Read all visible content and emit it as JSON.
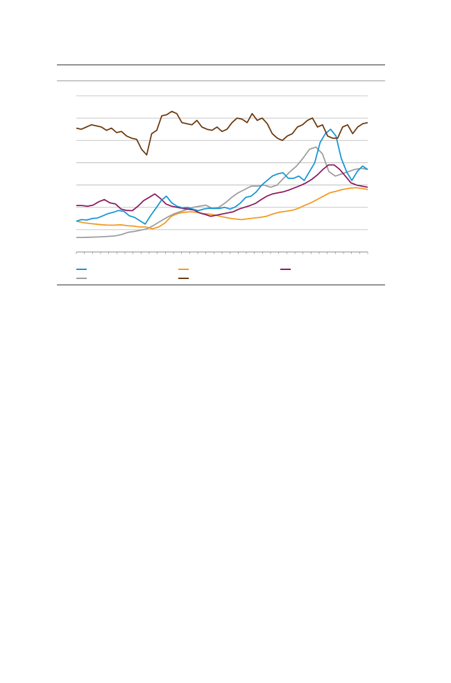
{
  "chart_data": {
    "type": "line",
    "title": "",
    "xlabel": "",
    "ylabel": "",
    "ylim": [
      0,
      7
    ],
    "y_gridlines": [
      1,
      2,
      3,
      4,
      5,
      6,
      7
    ],
    "x_tick_count": 37,
    "grid": "horizontal",
    "legend_position": "bottom",
    "series": [
      {
        "key": "blue",
        "name": "",
        "color": "#1696d2",
        "values": [
          1.38,
          1.45,
          1.43,
          1.5,
          1.52,
          1.62,
          1.72,
          1.78,
          1.86,
          1.82,
          1.62,
          1.55,
          1.4,
          1.25,
          1.62,
          1.95,
          2.3,
          2.5,
          2.2,
          2.05,
          1.98,
          2.0,
          1.92,
          1.85,
          1.92,
          1.96,
          1.95,
          1.95,
          2.0,
          1.92,
          2.02,
          2.2,
          2.45,
          2.5,
          2.7,
          3.0,
          3.2,
          3.4,
          3.5,
          3.55,
          3.3,
          3.3,
          3.4,
          3.2,
          3.6,
          4.0,
          4.9,
          5.3,
          5.5,
          5.2,
          4.2,
          3.6,
          3.2,
          3.6,
          3.85,
          3.7
        ]
      },
      {
        "key": "orange",
        "name": "",
        "color": "#f29a1f",
        "values": [
          1.38,
          1.32,
          1.28,
          1.25,
          1.22,
          1.2,
          1.2,
          1.22,
          1.18,
          1.16,
          1.12,
          1.12,
          1.04,
          1.12,
          1.3,
          1.6,
          1.72,
          1.78,
          1.8,
          1.78,
          1.72,
          1.7,
          1.65,
          1.58,
          1.52,
          1.48,
          1.45,
          1.48,
          1.52,
          1.55,
          1.6,
          1.7,
          1.78,
          1.82,
          1.86,
          1.95,
          2.08,
          2.2,
          2.35,
          2.5,
          2.65,
          2.72,
          2.8,
          2.85,
          2.88,
          2.85,
          2.8
        ]
      },
      {
        "key": "purple",
        "name": "",
        "color": "#8b1a5f",
        "values": [
          2.08,
          2.08,
          2.05,
          2.1,
          2.25,
          2.35,
          2.2,
          2.15,
          1.92,
          1.86,
          1.85,
          2.05,
          2.3,
          2.45,
          2.6,
          2.4,
          2.15,
          2.05,
          2.0,
          1.95,
          1.92,
          1.88,
          1.75,
          1.68,
          1.6,
          1.65,
          1.7,
          1.75,
          1.8,
          1.92,
          2.0,
          2.08,
          2.18,
          2.35,
          2.5,
          2.6,
          2.65,
          2.7,
          2.78,
          2.88,
          2.98,
          3.1,
          3.25,
          3.45,
          3.7,
          3.9,
          3.9,
          3.7,
          3.4,
          3.1,
          3.0,
          2.95,
          2.9
        ]
      },
      {
        "key": "gray",
        "name": "",
        "color": "#9d9d9d",
        "values": [
          0.65,
          0.65,
          0.66,
          0.67,
          0.68,
          0.7,
          0.72,
          0.78,
          0.88,
          0.92,
          0.98,
          1.05,
          1.2,
          1.38,
          1.55,
          1.7,
          1.8,
          1.9,
          2.0,
          2.05,
          2.1,
          1.95,
          2.0,
          2.2,
          2.45,
          2.65,
          2.8,
          2.95,
          2.95,
          3.0,
          2.9,
          3.0,
          3.3,
          3.6,
          3.85,
          4.2,
          4.6,
          4.7,
          4.4,
          3.6,
          3.4,
          3.5,
          3.6,
          3.7,
          3.75,
          3.7
        ]
      },
      {
        "key": "brown",
        "name": "",
        "color": "#6b3a0f",
        "values": [
          5.55,
          5.5,
          5.6,
          5.7,
          5.65,
          5.6,
          5.45,
          5.55,
          5.35,
          5.4,
          5.2,
          5.1,
          5.05,
          4.6,
          4.35,
          5.3,
          5.45,
          6.1,
          6.15,
          6.3,
          6.2,
          5.8,
          5.75,
          5.7,
          5.9,
          5.6,
          5.5,
          5.45,
          5.6,
          5.4,
          5.5,
          5.8,
          6.0,
          5.95,
          5.8,
          6.2,
          5.9,
          6.0,
          5.75,
          5.3,
          5.1,
          5.0,
          5.2,
          5.3,
          5.6,
          5.7,
          5.9,
          6.0,
          5.6,
          5.7,
          5.2,
          5.1,
          5.1,
          5.6,
          5.7,
          5.3,
          5.6,
          5.75,
          5.8
        ]
      }
    ]
  },
  "legend": [
    {
      "key": "blue",
      "label": ""
    },
    {
      "key": "orange",
      "label": ""
    },
    {
      "key": "purple",
      "label": ""
    },
    {
      "key": "gray",
      "label": ""
    },
    {
      "key": "brown",
      "label": ""
    }
  ]
}
